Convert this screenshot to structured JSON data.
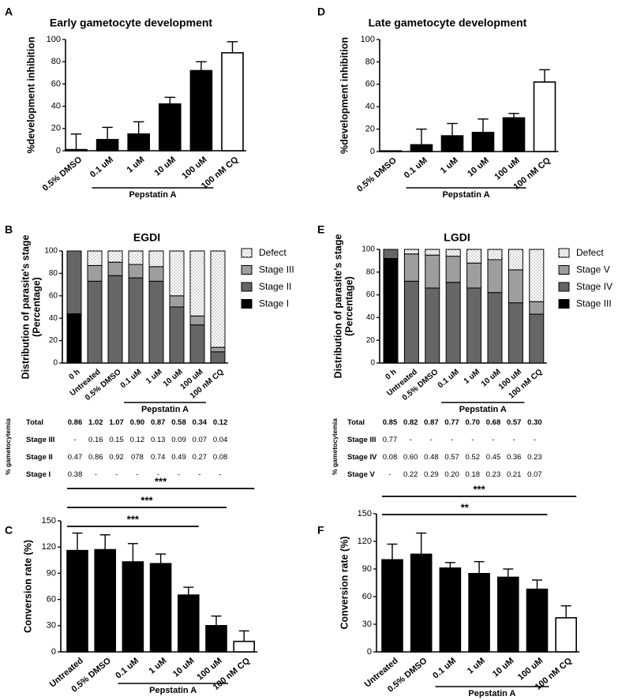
{
  "colors": {
    "ink": "#000000",
    "grey1": "#9e9e9e",
    "grey2": "#666666",
    "white": "#ffffff"
  },
  "chart_data": [
    {
      "id": "A",
      "type": "bar",
      "panel_label": "A",
      "title": "Early gametocyte development",
      "ylabel": "%development inhibition",
      "ylim": [
        0,
        100
      ],
      "yticks": [
        0,
        20,
        40,
        60,
        80,
        100
      ],
      "categories": [
        "0.5% DMSO",
        "0.1 uM",
        "1 uM",
        "10 uM",
        "100 uM",
        "100 nM CQ"
      ],
      "values": [
        1,
        10,
        15,
        42,
        72,
        88
      ],
      "errors": [
        14,
        11,
        11,
        6,
        8,
        10
      ],
      "fills": [
        "black",
        "black",
        "black",
        "black",
        "black",
        "white"
      ],
      "group": {
        "label": "Pepstatin A",
        "from": 1,
        "to": 4
      }
    },
    {
      "id": "D",
      "type": "bar",
      "panel_label": "D",
      "title": "Late gametocyte development",
      "ylabel": "%development inhibition",
      "ylim": [
        0,
        100
      ],
      "yticks": [
        0,
        20,
        40,
        60,
        80,
        100
      ],
      "categories": [
        "0.5% DMSO",
        "0.1 uM",
        "1 uM",
        "10 uM",
        "100 uM",
        "100 nM CQ"
      ],
      "values": [
        0,
        6,
        14,
        17,
        30,
        62
      ],
      "errors": [
        0,
        14,
        11,
        12,
        4,
        11
      ],
      "fills": [
        "black",
        "black",
        "black",
        "black",
        "black",
        "white"
      ],
      "group": {
        "label": "Pepstatin A",
        "from": 1,
        "to": 4
      }
    },
    {
      "id": "B",
      "type": "bar",
      "stacked": true,
      "panel_label": "B",
      "title": "EGDI",
      "ylabel": "Distribution of parasite's stage\n(Percentage)",
      "ylim": [
        0,
        100
      ],
      "yticks": [
        0,
        20,
        40,
        60,
        80,
        100
      ],
      "categories": [
        "0 h",
        "Untreated",
        "0.5% DMSO",
        "0.1 uM",
        "1 uM",
        "10 uM",
        "100 uM",
        "100 nM CQ"
      ],
      "series": [
        {
          "name": "Stage I",
          "fill": "black",
          "values": [
            44,
            0,
            0,
            0,
            0,
            0,
            0,
            0
          ]
        },
        {
          "name": "Stage II",
          "fill": "grey2",
          "values": [
            56,
            73,
            78,
            76,
            73,
            50,
            34,
            10
          ]
        },
        {
          "name": "Stage III",
          "fill": "grey1",
          "values": [
            0,
            14,
            12,
            12,
            13,
            10,
            8,
            4
          ]
        },
        {
          "name": "Defect",
          "fill": "dots",
          "values": [
            0,
            13,
            10,
            12,
            14,
            40,
            58,
            86
          ]
        }
      ],
      "legend_order": [
        "Defect",
        "Stage III",
        "Stage II",
        "Stage I"
      ],
      "group": {
        "label": "Pepstatin A",
        "from": 3,
        "to": 6
      }
    },
    {
      "id": "E",
      "type": "bar",
      "stacked": true,
      "panel_label": "E",
      "title": "LGDI",
      "ylabel": "Distribution of parasite's stage\n(Percentage)",
      "ylim": [
        0,
        100
      ],
      "yticks": [
        0,
        20,
        40,
        60,
        80,
        100
      ],
      "categories": [
        "0 h",
        "Untreated",
        "0.5% DMSO",
        "0.1 uM",
        "1 uM",
        "10 uM",
        "100 uM",
        "100 nM CQ"
      ],
      "series": [
        {
          "name": "Stage III",
          "fill": "black",
          "values": [
            92,
            0,
            0,
            0,
            0,
            0,
            0,
            0
          ]
        },
        {
          "name": "Stage IV",
          "fill": "grey2",
          "values": [
            8,
            72,
            66,
            71,
            66,
            62,
            53,
            43
          ]
        },
        {
          "name": "Stage V",
          "fill": "grey1",
          "values": [
            0,
            24,
            29,
            23,
            22,
            29,
            29,
            11
          ]
        },
        {
          "name": "Defect",
          "fill": "dots",
          "values": [
            0,
            4,
            5,
            6,
            12,
            9,
            18,
            46
          ]
        }
      ],
      "legend_order": [
        "Defect",
        "Stage V",
        "Stage IV",
        "Stage III"
      ],
      "group": {
        "label": "Pepstatin A",
        "from": 3,
        "to": 6
      }
    },
    {
      "id": "C",
      "type": "bar",
      "panel_label": "C",
      "title": "",
      "ylabel": "Conversion rate (%)",
      "ylim": [
        0,
        150
      ],
      "yticks": [
        0,
        30,
        60,
        90,
        120,
        150
      ],
      "categories": [
        "Untreated",
        "0.5% DMSO",
        "0.1 uM",
        "1 uM",
        "10 uM",
        "100 uM",
        "100 nM CQ"
      ],
      "values": [
        116,
        117,
        103,
        101,
        65,
        30,
        12
      ],
      "errors": [
        20,
        17,
        21,
        11,
        9,
        11,
        12
      ],
      "fills": [
        "black",
        "black",
        "black",
        "black",
        "black",
        "black",
        "white"
      ],
      "group": {
        "label": "Pepstatin A",
        "from": 2,
        "to": 5
      },
      "significance": [
        {
          "label": "***",
          "from": 0,
          "to": 6
        },
        {
          "label": "***",
          "from": 0,
          "to": 5
        },
        {
          "label": "***",
          "from": 0,
          "to": 4
        }
      ]
    },
    {
      "id": "F",
      "type": "bar",
      "panel_label": "F",
      "title": "",
      "ylabel": "Conversion rate (%)",
      "ylim": [
        0,
        150
      ],
      "yticks": [
        0,
        30,
        60,
        90,
        120,
        150
      ],
      "categories": [
        "Untreated",
        "0.5% DMSO",
        "0.1 uM",
        "1 uM",
        "10 uM",
        "100 uM",
        "100 nM CQ"
      ],
      "values": [
        100,
        106,
        91,
        85,
        81,
        68,
        37
      ],
      "errors": [
        17,
        23,
        6,
        13,
        9,
        10,
        13
      ],
      "fills": [
        "black",
        "black",
        "black",
        "black",
        "black",
        "black",
        "white"
      ],
      "group": {
        "label": "Pepstatin A",
        "from": 2,
        "to": 5
      },
      "significance": [
        {
          "label": "***",
          "from": 0,
          "to": 6
        },
        {
          "label": "**",
          "from": 0,
          "to": 5
        }
      ]
    }
  ],
  "tables": {
    "left": {
      "side_label": "% gametocytemia",
      "rows": [
        {
          "label": "Total",
          "bold": true,
          "cells": [
            "0.86",
            "1.02",
            "1.07",
            "0.90",
            "0.87",
            "0.58",
            "0.34",
            "0.12"
          ]
        },
        {
          "label": "Stage III",
          "bold": false,
          "cells": [
            "-",
            "0.16",
            "0.15",
            "0.12",
            "0.13",
            "0.09",
            "0.07",
            "0.04"
          ]
        },
        {
          "label": "Stage II",
          "bold": false,
          "cells": [
            "0.47",
            "0.86",
            "0.92",
            "078",
            "0.74",
            "0.49",
            "0.27",
            "0.08"
          ]
        },
        {
          "label": "Stage I",
          "bold": false,
          "cells": [
            "0.38",
            "-",
            "-",
            "-",
            "-",
            "-",
            "-",
            "-"
          ]
        }
      ]
    },
    "right": {
      "side_label": "% gametocytemia",
      "rows": [
        {
          "label": "Total",
          "bold": true,
          "cells": [
            "0.85",
            "0.82",
            "0.87",
            "0.77",
            "0.70",
            "0.68",
            "0.57",
            "0.30"
          ]
        },
        {
          "label": "Stage III",
          "bold": false,
          "cells": [
            "0.77",
            "-",
            "-",
            "-",
            "-",
            "-",
            "-",
            "-"
          ]
        },
        {
          "label": "Stage IV",
          "bold": false,
          "cells": [
            "0.08",
            "0.60",
            "0.48",
            "0.57",
            "0.52",
            "0.45",
            "0.36",
            "0.23"
          ]
        },
        {
          "label": "Stage V",
          "bold": false,
          "cells": [
            "-",
            "0.22",
            "0.29",
            "0.20",
            "0.18",
            "0.23",
            "0.21",
            "0.07"
          ]
        }
      ]
    }
  }
}
